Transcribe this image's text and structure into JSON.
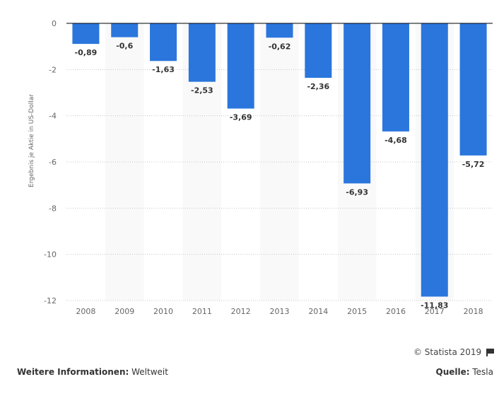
{
  "chart_data": {
    "type": "bar",
    "title": "",
    "xlabel": "",
    "ylabel": "Ergebnis je Aktie in US-Dollar",
    "categories": [
      "2008",
      "2009",
      "2010",
      "2011",
      "2012",
      "2013",
      "2014",
      "2015",
      "2016",
      "2017",
      "2018"
    ],
    "values": [
      -0.89,
      -0.6,
      -1.63,
      -2.53,
      -3.69,
      -0.62,
      -2.36,
      -6.93,
      -4.68,
      -11.83,
      -5.72
    ],
    "value_labels": [
      "-0,89",
      "-0,6",
      "-1,63",
      "-2,53",
      "-3,69",
      "-0,62",
      "-2,36",
      "-6,93",
      "-4,68",
      "-11,83",
      "-5,72"
    ],
    "ylim": [
      -12,
      0
    ],
    "yticks": [
      0,
      -2,
      -4,
      -6,
      -8,
      -10,
      -12
    ],
    "ytick_labels": [
      "0",
      "-2",
      "-4",
      "-6",
      "-8",
      "-10",
      "-12"
    ],
    "grid": true,
    "legend": "none",
    "bar_color": "#2a76dd",
    "band_color": "#f9f9f9"
  },
  "footer": {
    "copyright": "© Statista 2019",
    "info_label": "Weitere Informationen:",
    "info_value": "Weltweit",
    "source_label": "Quelle:",
    "source_value": "Tesla"
  }
}
